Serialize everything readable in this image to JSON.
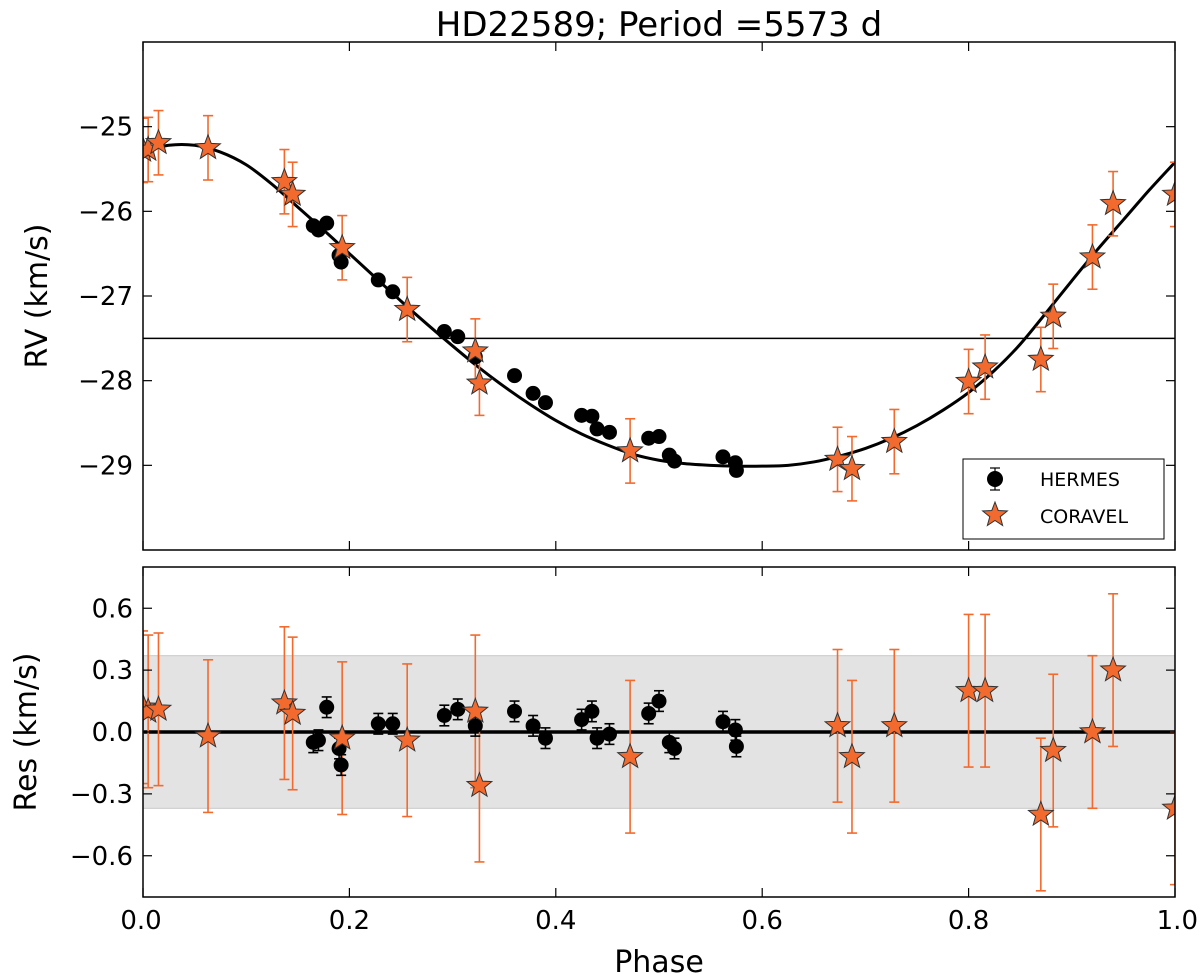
{
  "chart_data": {
    "type": "scatter",
    "title": "HD22589; Period =5573 d",
    "xlabel": "Phase",
    "xlim": [
      0.0,
      1.0
    ],
    "xticks": [
      "0.0",
      "0.2",
      "0.4",
      "0.6",
      "0.8",
      "1.0"
    ],
    "xtick_values": [
      0.0,
      0.2,
      0.4,
      0.6,
      0.8,
      1.0
    ],
    "colors": {
      "hermes": "#000000",
      "coravel": "#f26a2e",
      "band": "#e3e3e3"
    },
    "legend": {
      "position": "lower right",
      "entries": [
        "HERMES",
        "CORAVEL"
      ]
    },
    "top": {
      "ylabel": "RV (km/s)",
      "ylim": [
        -30.0,
        -24.0
      ],
      "yticks": [
        "−25",
        "−26",
        "−27",
        "−28",
        "−29"
      ],
      "ytick_values": [
        -25,
        -26,
        -27,
        -28,
        -29
      ],
      "systemic_velocity": -27.5,
      "orbit_fit": {
        "x": [
          0.0,
          0.025,
          0.05,
          0.075,
          0.1,
          0.125,
          0.15,
          0.175,
          0.2,
          0.225,
          0.25,
          0.275,
          0.3,
          0.325,
          0.35,
          0.375,
          0.4,
          0.425,
          0.45,
          0.475,
          0.5,
          0.525,
          0.55,
          0.575,
          0.6,
          0.625,
          0.65,
          0.675,
          0.7,
          0.725,
          0.75,
          0.775,
          0.8,
          0.825,
          0.85,
          0.875,
          0.9,
          0.925,
          0.95,
          0.975,
          1.0
        ],
        "y": [
          -25.3,
          -25.22,
          -25.22,
          -25.3,
          -25.45,
          -25.68,
          -25.95,
          -26.22,
          -26.5,
          -26.78,
          -27.06,
          -27.33,
          -27.59,
          -27.84,
          -28.07,
          -28.28,
          -28.47,
          -28.63,
          -28.76,
          -28.87,
          -28.94,
          -28.98,
          -29.0,
          -29.01,
          -29.01,
          -29.0,
          -28.96,
          -28.89,
          -28.8,
          -28.68,
          -28.53,
          -28.35,
          -28.14,
          -27.88,
          -27.57,
          -27.2,
          -26.82,
          -26.45,
          -26.1,
          -25.75,
          -25.42
        ]
      },
      "hermes": {
        "x": [
          0.165,
          0.17,
          0.178,
          0.19,
          0.192,
          0.228,
          0.242,
          0.292,
          0.305,
          0.322,
          0.36,
          0.378,
          0.39,
          0.425,
          0.435,
          0.44,
          0.452,
          0.49,
          0.5,
          0.51,
          0.515,
          0.562,
          0.574,
          0.575
        ],
        "y": [
          -26.17,
          -26.22,
          -26.14,
          -26.52,
          -26.6,
          -26.81,
          -26.95,
          -27.42,
          -27.48,
          -27.72,
          -27.94,
          -28.15,
          -28.26,
          -28.41,
          -28.42,
          -28.57,
          -28.61,
          -28.68,
          -28.66,
          -28.88,
          -28.95,
          -28.9,
          -28.97,
          -29.06
        ]
      },
      "coravel": {
        "x": [
          0.0,
          0.005,
          0.015,
          0.063,
          0.137,
          0.145,
          0.193,
          0.256,
          0.322,
          0.326,
          0.472,
          0.673,
          0.687,
          0.728,
          0.8,
          0.816,
          0.87,
          0.882,
          0.92,
          0.94,
          1.0
        ],
        "y": [
          -25.28,
          -25.27,
          -25.19,
          -25.25,
          -25.65,
          -25.8,
          -26.43,
          -27.16,
          -27.65,
          -28.03,
          -28.83,
          -28.93,
          -29.04,
          -28.72,
          -28.01,
          -27.84,
          -27.75,
          -27.24,
          -26.54,
          -25.91,
          -25.8
        ],
        "yerr": 0.38
      }
    },
    "bottom": {
      "ylabel": "Res (km/s)",
      "ylim": [
        -0.8,
        0.8
      ],
      "yticks": [
        "0.6",
        "0.3",
        "0.0",
        "−0.3",
        "−0.6"
      ],
      "ytick_values": [
        0.6,
        0.3,
        0.0,
        -0.3,
        -0.6
      ],
      "sigma_band": [
        -0.37,
        0.37
      ],
      "hermes": {
        "x": [
          0.165,
          0.17,
          0.178,
          0.19,
          0.192,
          0.228,
          0.242,
          0.292,
          0.305,
          0.322,
          0.36,
          0.378,
          0.39,
          0.425,
          0.435,
          0.44,
          0.452,
          0.49,
          0.5,
          0.51,
          0.515,
          0.562,
          0.574,
          0.575
        ],
        "y": [
          -0.05,
          -0.04,
          0.12,
          -0.08,
          -0.16,
          0.04,
          0.04,
          0.08,
          0.11,
          0.03,
          0.1,
          0.03,
          -0.03,
          0.06,
          0.1,
          -0.03,
          -0.01,
          0.09,
          0.15,
          -0.05,
          -0.08,
          0.05,
          0.01,
          -0.07
        ],
        "yerr": 0.05
      },
      "coravel": {
        "x": [
          0.0,
          0.005,
          0.015,
          0.063,
          0.137,
          0.145,
          0.193,
          0.256,
          0.322,
          0.326,
          0.472,
          0.673,
          0.687,
          0.728,
          0.8,
          0.816,
          0.87,
          0.882,
          0.92,
          0.94,
          1.0
        ],
        "y": [
          0.12,
          0.1,
          0.11,
          -0.02,
          0.14,
          0.09,
          -0.03,
          -0.04,
          0.1,
          -0.26,
          -0.12,
          0.03,
          -0.12,
          0.03,
          0.2,
          0.2,
          -0.4,
          -0.09,
          0.0,
          0.3,
          -0.37
        ],
        "yerr": 0.37
      }
    }
  }
}
